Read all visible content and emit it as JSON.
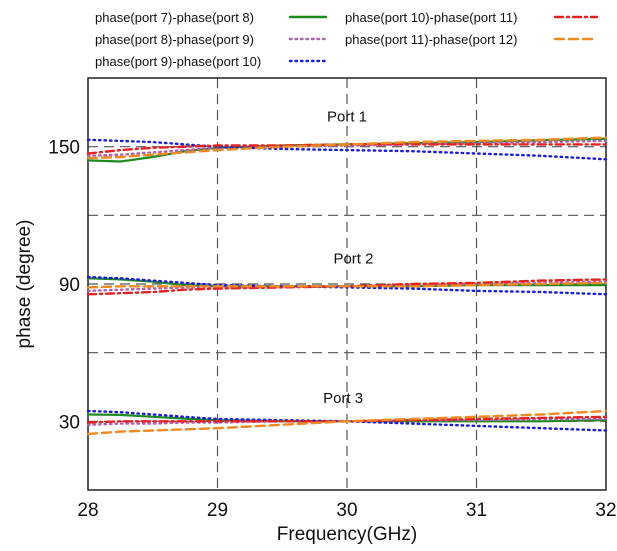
{
  "chart_data": {
    "type": "line",
    "title": "",
    "xlabel": "Frequency(GHz)",
    "ylabel": "phase (degree)",
    "xlim": [
      28,
      32
    ],
    "ylim": [
      0,
      180
    ],
    "x_ticks": [
      28,
      29,
      30,
      31,
      32
    ],
    "y_ticks": [
      30,
      90,
      150
    ],
    "y_gridlines": [
      30,
      60,
      90,
      120,
      150
    ],
    "grid": true,
    "legend_position": "top",
    "x": [
      28.0,
      28.25,
      28.5,
      28.75,
      29.0,
      29.5,
      30.0,
      30.5,
      31.0,
      31.5,
      32.0
    ],
    "series": [
      {
        "name": "phase(port 7)-phase(port 8)",
        "color": "#1f8a1f",
        "style": "solid",
        "groups": [
          [
            144.0,
            143.5,
            145.5,
            148.0,
            149.5,
            150.5,
            151.0,
            151.5,
            152.0,
            152.8,
            153.5
          ],
          [
            92.5,
            92.0,
            91.0,
            89.5,
            89.0,
            89.0,
            89.0,
            89.0,
            89.5,
            89.5,
            89.5
          ],
          [
            33.0,
            32.8,
            32.0,
            31.2,
            30.5,
            30.0,
            30.0,
            30.0,
            30.0,
            30.0,
            30.5
          ]
        ]
      },
      {
        "name": "phase(port 8)-phase(port 9)",
        "color": "#b060b0",
        "style": "dotted",
        "groups": [
          [
            146.0,
            146.5,
            147.5,
            148.5,
            149.5,
            150.0,
            150.5,
            151.0,
            151.5,
            152.0,
            152.5
          ],
          [
            87.0,
            87.5,
            88.0,
            88.5,
            88.5,
            89.0,
            89.0,
            89.5,
            90.0,
            90.5,
            91.0
          ],
          [
            28.5,
            29.0,
            29.0,
            29.5,
            29.5,
            30.0,
            30.0,
            30.5,
            30.5,
            31.0,
            31.0
          ]
        ]
      },
      {
        "name": "phase(port 9)-phase(port 10)",
        "color": "#1a1ae6",
        "style": "dotted",
        "groups": [
          [
            153.0,
            152.5,
            152.0,
            151.0,
            150.0,
            149.0,
            148.5,
            148.0,
            147.0,
            146.0,
            144.5
          ],
          [
            93.0,
            92.5,
            91.5,
            90.5,
            89.5,
            89.0,
            88.5,
            88.0,
            87.0,
            86.5,
            85.5
          ],
          [
            34.5,
            34.0,
            33.0,
            32.0,
            31.0,
            30.5,
            30.0,
            29.0,
            28.0,
            27.0,
            26.0
          ]
        ]
      },
      {
        "name": "phase(port 10)-phase(port 11)",
        "color": "#e82020",
        "style": "dashdot",
        "groups": [
          [
            147.0,
            148.5,
            149.5,
            150.0,
            150.5,
            150.5,
            151.0,
            151.0,
            151.0,
            151.0,
            151.0
          ],
          [
            85.5,
            86.0,
            86.5,
            87.5,
            88.0,
            88.5,
            89.0,
            90.0,
            90.5,
            91.5,
            92.0
          ],
          [
            29.5,
            30.0,
            30.0,
            30.0,
            30.0,
            30.0,
            30.0,
            30.5,
            31.0,
            31.5,
            32.0
          ]
        ]
      },
      {
        "name": "phase(port 11)-phase(port 12)",
        "color": "#f08a20",
        "style": "dashed",
        "groups": [
          [
            145.0,
            145.5,
            146.5,
            147.5,
            148.5,
            150.0,
            151.0,
            152.0,
            152.5,
            153.0,
            154.0
          ],
          [
            88.5,
            89.0,
            89.0,
            89.0,
            89.0,
            89.0,
            89.0,
            89.0,
            89.5,
            90.0,
            90.5
          ],
          [
            24.5,
            25.5,
            26.0,
            26.5,
            27.0,
            28.5,
            30.0,
            31.0,
            32.0,
            33.0,
            34.5
          ]
        ]
      }
    ],
    "annotations": [
      {
        "text": "Port 1",
        "x": 30.0,
        "y": 161
      },
      {
        "text": "Port 2",
        "x": 30.05,
        "y": 99
      },
      {
        "text": "Port 3",
        "x": 29.97,
        "y": 38
      }
    ]
  }
}
